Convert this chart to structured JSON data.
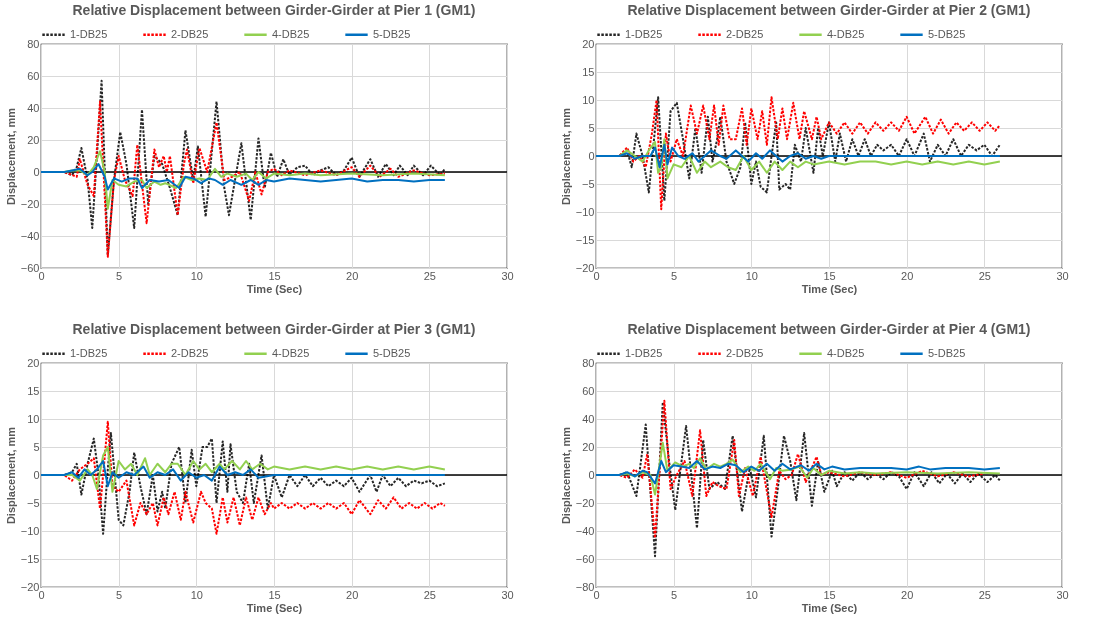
{
  "chart_data": [
    {
      "type": "line",
      "title": "Relative Displacement between Girder-Girder at Pier 1 (GM1)",
      "xlabel": "Time (Sec)",
      "ylabel": "Displacement, mm",
      "xlim": [
        0,
        30
      ],
      "xticks": [
        0,
        5,
        10,
        15,
        20,
        25,
        30
      ],
      "ylim": [
        -60,
        80
      ],
      "yticks": [
        -60,
        -40,
        -20,
        0,
        20,
        40,
        60,
        80
      ],
      "grid": true,
      "legend": "top",
      "ref_lines": [
        {
          "axis": "y",
          "value": 0,
          "color": "#000000"
        }
      ],
      "series": [
        {
          "name": "1-DB25",
          "color": "#262626",
          "line_style": "dotted",
          "x": [
            0,
            1.5,
            2,
            2.3,
            2.6,
            3,
            3.3,
            3.6,
            3.9,
            4.3,
            4.7,
            5.1,
            5.5,
            6,
            6.5,
            6.9,
            7.3,
            7.8,
            8.3,
            8.8,
            9.3,
            9.8,
            10.1,
            10.6,
            11.3,
            11.8,
            12.1,
            12.9,
            13.5,
            14,
            14.4,
            14.8,
            15.2,
            15.6,
            16,
            16.5,
            17,
            17.5,
            18,
            18.5,
            19,
            19.5,
            20,
            20.5,
            21.2,
            21.7,
            22.2,
            22.7,
            23.1,
            23.6,
            24,
            24.6,
            25.1,
            25.7,
            26
          ],
          "values": [
            0,
            0,
            -2,
            3,
            15,
            -5,
            -35,
            10,
            57,
            -52,
            -5,
            25,
            5,
            -35,
            39,
            -20,
            10,
            5,
            -10,
            -27,
            26,
            -5,
            16,
            -28,
            44,
            -10,
            -27,
            18,
            -30,
            21,
            -10,
            12,
            -3,
            8,
            -2,
            3,
            4,
            -2,
            1,
            3,
            -2,
            1,
            9,
            -3,
            8,
            -3,
            5,
            -2,
            4,
            -2,
            4,
            -2,
            4,
            -2,
            2
          ]
        },
        {
          "name": "2-DB25",
          "color": "#ff0000",
          "line_style": "dotted",
          "x": [
            0,
            1.5,
            2.3,
            2.5,
            3,
            3.4,
            3.8,
            4.3,
            4.7,
            5,
            5.4,
            5.9,
            6.2,
            6.8,
            7.3,
            7.6,
            7.9,
            8.1,
            8.3,
            8.8,
            9.2,
            9.4,
            9.8,
            10.2,
            10.7,
            11.3,
            11.8,
            12.3,
            12.8,
            13.4,
            13.8,
            14.2,
            14.6,
            15,
            15.5,
            16,
            17,
            18,
            19,
            20,
            20.5,
            21.2,
            21.8,
            22.5,
            23,
            24,
            25,
            26
          ],
          "values": [
            0,
            0,
            -3,
            8,
            -8,
            -15,
            44,
            -53,
            -5,
            10,
            -5,
            -15,
            17,
            -32,
            14,
            3,
            10,
            0,
            10,
            -27,
            5,
            14,
            -7,
            15,
            0,
            31,
            -5,
            -3,
            0,
            -18,
            0,
            -14,
            0,
            2,
            -2,
            1,
            -2,
            1,
            -2,
            3,
            -3,
            4,
            -3,
            2,
            -3,
            1,
            -2,
            -1
          ]
        },
        {
          "name": "4-DB25",
          "color": "#92d050",
          "line_style": "solid",
          "x": [
            0,
            1.5,
            2,
            2.5,
            3,
            3.4,
            3.8,
            4.1,
            4.3,
            4.6,
            5,
            5.5,
            6,
            6.5,
            6.8,
            7.3,
            7.7,
            8,
            8.7,
            9.2,
            9.7,
            10.2,
            10.7,
            11.2,
            11.6,
            12,
            12.6,
            13.2,
            13.6,
            14,
            14.5,
            15,
            16,
            17,
            18,
            20,
            22,
            24,
            26
          ],
          "values": [
            0,
            0,
            1,
            1,
            -2,
            3,
            13,
            0,
            -23,
            -5,
            -8,
            -9,
            -6,
            -5,
            -10,
            -6,
            -8,
            -7,
            -10,
            -3,
            -5,
            -4,
            -5,
            2,
            -3,
            -1,
            -3,
            -1,
            -5,
            0,
            -4,
            -1,
            -2,
            -1,
            -2,
            -1,
            -2,
            -1,
            -2
          ]
        },
        {
          "name": "5-DB25",
          "color": "#0070c0",
          "line_style": "solid",
          "x": [
            0,
            1.5,
            2,
            2.5,
            3,
            3.3,
            3.7,
            4.1,
            4.3,
            4.7,
            5.2,
            5.7,
            6.2,
            6.5,
            7,
            7.6,
            8.2,
            8.9,
            9.3,
            9.8,
            10.3,
            10.8,
            11.2,
            11.7,
            12.2,
            12.9,
            13.5,
            14,
            14.5,
            15,
            16,
            17,
            18,
            19,
            20,
            21,
            22,
            23,
            24,
            25,
            26
          ],
          "values": [
            0,
            0,
            1,
            2,
            -2,
            0,
            5,
            -3,
            -11,
            -4,
            -6,
            -4,
            -4,
            -10,
            -5,
            -6,
            -5,
            -10,
            -3,
            -4,
            -7,
            -4,
            -5,
            -8,
            -5,
            -8,
            -5,
            -8,
            -5,
            -6,
            -4,
            -5,
            -6,
            -5,
            -4,
            -6,
            -5,
            -5,
            -6,
            -5,
            -5
          ]
        }
      ]
    },
    {
      "type": "line",
      "title": "Relative Displacement between Girder-Girder at Pier 2 (GM1)",
      "xlabel": "Time (Sec)",
      "ylabel": "Displacement, mm",
      "xlim": [
        0,
        30
      ],
      "xticks": [
        0,
        5,
        10,
        15,
        20,
        25,
        30
      ],
      "ylim": [
        -20,
        20
      ],
      "yticks": [
        -20,
        -15,
        -10,
        -5,
        0,
        5,
        10,
        15,
        20
      ],
      "grid": true,
      "legend": "top",
      "ref_lines": [
        {
          "axis": "y",
          "value": 0,
          "color": "#000000"
        }
      ],
      "series": [
        {
          "name": "1-DB25",
          "color": "#262626",
          "line_style": "dotted",
          "x": [
            0,
            1.5,
            2,
            2.3,
            2.6,
            3,
            3.4,
            3.7,
            4,
            4.4,
            4.8,
            5.2,
            5.6,
            6,
            6.4,
            6.8,
            7.2,
            7.5,
            7.8,
            8,
            8.4,
            8.9,
            9.3,
            9.6,
            10,
            10.3,
            10.6,
            11,
            11.3,
            11.6,
            11.8,
            12.2,
            12.5,
            12.8,
            13.2,
            13.5,
            14,
            14.3,
            14.6,
            15,
            15.4,
            15.7,
            16.1,
            16.5,
            16.9,
            17.3,
            17.7,
            18.1,
            18.5,
            19,
            19.5,
            20,
            20.5,
            21.1,
            21.5,
            22,
            22.5,
            23,
            23.5,
            24,
            24.5,
            25,
            25.5,
            26
          ],
          "values": [
            0,
            0,
            1,
            -2,
            4,
            0,
            -6.5,
            2,
            10.5,
            -8,
            8,
            9.5,
            3,
            -4,
            5,
            -3,
            7,
            -1,
            3,
            7,
            -1,
            -5,
            -2,
            6,
            -5,
            -1,
            -5.5,
            -6.5,
            0,
            6,
            -6,
            -5,
            -6,
            2,
            -1,
            5,
            -3,
            5,
            0,
            6,
            -1,
            4,
            -1,
            3,
            0,
            3,
            0,
            2,
            1,
            2,
            0,
            3,
            0,
            4,
            -1,
            2,
            0,
            3,
            0,
            2,
            1,
            2,
            0,
            2
          ]
        },
        {
          "name": "2-DB25",
          "color": "#ff0000",
          "line_style": "dotted",
          "x": [
            0,
            1.5,
            2,
            2.4,
            2.8,
            3.2,
            3.6,
            3.9,
            4.2,
            4.5,
            4.8,
            5.2,
            5.6,
            6.1,
            6.5,
            6.9,
            7.3,
            7.6,
            7.9,
            8.2,
            8.6,
            9,
            9.4,
            9.7,
            10,
            10.4,
            10.7,
            11,
            11.3,
            11.7,
            12,
            12.3,
            12.7,
            13.1,
            13.4,
            13.9,
            14.2,
            14.5,
            15,
            15.5,
            16,
            16.5,
            17,
            17.5,
            18,
            18.5,
            19,
            19.5,
            20,
            20.5,
            21.2,
            21.7,
            22.2,
            22.7,
            23.2,
            23.7,
            24.2,
            24.7,
            25.2,
            25.7,
            26
          ],
          "values": [
            0,
            0,
            1.5,
            -1,
            0,
            -2,
            4,
            10,
            -9.5,
            4,
            -1,
            3,
            0,
            9,
            4,
            9,
            3,
            9,
            2,
            9,
            3,
            3,
            8.5,
            2,
            8.5,
            3,
            8,
            2,
            10.5,
            3,
            8.5,
            3,
            9.5,
            3,
            8,
            3,
            7,
            3,
            6,
            4,
            6,
            4,
            6,
            4,
            6,
            4.5,
            6,
            4.5,
            7,
            4,
            7,
            4,
            6.5,
            4,
            6,
            4.5,
            6,
            4.5,
            6,
            4.5,
            5.5
          ]
        },
        {
          "name": "4-DB25",
          "color": "#92d050",
          "line_style": "solid",
          "x": [
            0,
            1.5,
            2,
            2.5,
            3,
            3.4,
            3.8,
            4,
            4.2,
            4.4,
            4.6,
            5,
            5.5,
            6,
            6.5,
            7,
            7.4,
            8,
            8.5,
            9,
            9.5,
            10,
            10.5,
            11,
            11.5,
            12,
            12.5,
            13,
            13.5,
            14,
            15,
            16,
            17,
            18,
            19,
            20,
            21,
            22,
            23,
            24,
            25,
            26
          ],
          "values": [
            0,
            0,
            1,
            0,
            -1,
            1,
            2.5,
            -3,
            -2,
            3,
            -4,
            -1.5,
            -2,
            0,
            -3,
            -1,
            -2,
            -1,
            -2,
            -2.5,
            0,
            -2.5,
            -1,
            -3,
            -1,
            -2.5,
            -1,
            -2,
            -1,
            -1.5,
            -1,
            -1.5,
            -1,
            -1,
            -1.5,
            -1,
            -1.5,
            -1,
            -1.5,
            -1,
            -1.5,
            -1
          ]
        },
        {
          "name": "5-DB25",
          "color": "#0070c0",
          "line_style": "solid",
          "x": [
            0,
            1.5,
            2,
            2.5,
            3,
            3.5,
            3.8,
            4.1,
            4.4,
            4.6,
            4.9,
            5.3,
            5.7,
            6.2,
            6.6,
            7,
            7.4,
            8,
            8.4,
            9,
            9.4,
            9.8,
            10.3,
            10.7,
            11.2,
            11.6,
            12,
            12.5,
            13,
            13.5,
            14,
            14.5,
            15,
            16,
            18,
            20,
            22,
            24,
            26
          ],
          "values": [
            0,
            0,
            0.5,
            -0.5,
            0,
            0,
            1.5,
            -2,
            2,
            -1.5,
            1.5,
            0,
            -0.5,
            0.5,
            -1,
            0,
            1,
            0,
            -0.5,
            1,
            0,
            -1,
            0.5,
            -0.5,
            1,
            0,
            -1,
            0,
            0.5,
            -0.5,
            0,
            -0.5,
            0,
            0,
            0,
            0,
            0,
            0,
            0
          ]
        }
      ]
    },
    {
      "type": "line",
      "title": "Relative Displacement between Girder-Girder at Pier 3 (GM1)",
      "xlabel": "Time (Sec)",
      "ylabel": "Displacement, mm",
      "xlim": [
        0,
        30
      ],
      "xticks": [
        0,
        5,
        10,
        15,
        20,
        25,
        30
      ],
      "ylim": [
        -20,
        20
      ],
      "yticks": [
        -20,
        -15,
        -10,
        -5,
        0,
        5,
        10,
        15,
        20
      ],
      "grid": true,
      "legend": "top",
      "ref_lines": [
        {
          "axis": "y",
          "value": 0,
          "color": "#000000"
        }
      ],
      "series": [
        {
          "name": "1-DB25",
          "color": "#262626",
          "line_style": "dotted",
          "x": [
            0,
            1.5,
            2,
            2.3,
            2.6,
            3,
            3.4,
            3.7,
            4,
            4.3,
            4.5,
            5,
            5.3,
            5.7,
            6,
            6.4,
            6.8,
            7.2,
            7.5,
            7.8,
            8,
            8.4,
            8.9,
            9.3,
            9.7,
            10,
            10.4,
            10.7,
            11,
            11.3,
            11.7,
            12,
            12.2,
            12.6,
            13,
            13.4,
            13.7,
            14.2,
            14.6,
            15,
            15.5,
            16,
            16.5,
            17,
            17.5,
            18,
            18.5,
            19,
            19.5,
            20,
            20.5,
            21.2,
            21.6,
            22,
            22.5,
            23,
            23.5,
            24,
            24.5,
            25,
            25.5,
            26
          ],
          "values": [
            0,
            0,
            0.5,
            2,
            -3.5,
            2,
            6.5,
            0,
            -10.5,
            1,
            7.5,
            -8,
            -9,
            -3,
            4,
            -2,
            -7,
            0,
            -6.5,
            -3,
            -6,
            2,
            5,
            -5,
            4.5,
            -2,
            5,
            5,
            6.5,
            -5,
            6,
            -3,
            5.5,
            -3,
            -5,
            2,
            -5,
            3.5,
            -6,
            0,
            -4,
            0,
            -2,
            0,
            -2,
            -0.5,
            -2,
            -1,
            -2,
            -0.5,
            -3,
            0,
            -3,
            0,
            -2,
            -0.5,
            -2,
            -1,
            -1.5,
            -1,
            -2,
            -1.5
          ]
        },
        {
          "name": "2-DB25",
          "color": "#ff0000",
          "line_style": "dotted",
          "x": [
            0,
            1.5,
            2,
            2.5,
            3,
            3.4,
            3.8,
            4,
            4.3,
            4.6,
            5,
            5.5,
            6,
            6.4,
            6.8,
            7.2,
            7.5,
            7.9,
            8.2,
            8.6,
            9,
            9.3,
            9.8,
            10.3,
            10.6,
            11,
            11.3,
            11.7,
            12,
            12.4,
            12.8,
            13.2,
            13.6,
            14,
            14.4,
            14.8,
            15,
            15.5,
            16,
            16.5,
            17,
            17.5,
            18,
            18.5,
            19,
            19.5,
            20,
            20.5,
            21.2,
            21.7,
            22.2,
            22.7,
            23.2,
            23.7,
            24.2,
            24.7,
            25.2,
            25.7,
            26
          ],
          "values": [
            0,
            0,
            -1,
            1,
            2,
            3,
            -6,
            0,
            9.5,
            -2,
            -3,
            -1,
            -9,
            -5,
            -7,
            -5,
            -9,
            -4,
            -7,
            -3,
            -8,
            -3,
            -8.5,
            -3,
            -5,
            -6,
            -10.5,
            -4,
            -8.5,
            -4,
            -9,
            -4,
            -8,
            -4,
            -7,
            -5,
            -6,
            -5,
            -6,
            -5,
            -6,
            -5,
            -6,
            -5,
            -6,
            -5,
            -7,
            -4.5,
            -7,
            -4.5,
            -6,
            -4,
            -6,
            -5,
            -6,
            -5,
            -6,
            -5,
            -5.5
          ]
        },
        {
          "name": "4-DB25",
          "color": "#92d050",
          "line_style": "solid",
          "x": [
            0,
            1.5,
            2,
            2.5,
            3,
            3.3,
            3.6,
            4,
            4.3,
            4.6,
            5,
            5.4,
            5.8,
            6.2,
            6.7,
            7,
            7.5,
            8,
            8.4,
            8.8,
            9.3,
            9.8,
            10.2,
            10.6,
            11,
            11.5,
            11.8,
            12.3,
            12.8,
            13.2,
            13.6,
            14.1,
            14.6,
            15,
            16,
            17,
            18,
            19,
            20,
            21,
            22,
            23,
            24,
            25,
            26
          ],
          "values": [
            0,
            0,
            0,
            -1,
            1,
            0,
            -2.5,
            3.5,
            5,
            -3,
            2.5,
            1,
            2,
            0,
            3,
            0,
            2,
            0.5,
            2,
            2,
            0,
            2.5,
            1,
            2,
            0.5,
            2,
            1,
            2.5,
            1,
            2.5,
            1,
            2,
            1,
            1.5,
            1,
            1.5,
            1,
            1.5,
            1,
            1.5,
            1,
            1.5,
            1,
            1.5,
            1
          ]
        },
        {
          "name": "5-DB25",
          "color": "#0070c0",
          "line_style": "solid",
          "x": [
            0,
            1.5,
            2,
            2.4,
            2.8,
            3.2,
            3.6,
            4,
            4.3,
            4.6,
            5,
            5.5,
            6,
            6.6,
            7,
            7.5,
            8,
            8.5,
            9,
            9.5,
            10,
            10.5,
            11,
            11.5,
            12,
            12.5,
            13,
            13.5,
            14,
            15,
            16,
            18,
            20,
            22,
            24,
            26
          ],
          "values": [
            0,
            0,
            0.5,
            -0.5,
            1,
            0,
            1,
            2.5,
            -2,
            0.5,
            -0.5,
            0.5,
            0,
            1.5,
            -0.5,
            0.5,
            0,
            1,
            -1,
            0.5,
            -0.5,
            0,
            -1,
            1.5,
            0,
            0.5,
            0,
            1,
            -0.5,
            0,
            0,
            0,
            0,
            0,
            0,
            0
          ]
        }
      ]
    },
    {
      "type": "line",
      "title": "Relative Displacement between Girder-Girder at Pier 4 (GM1)",
      "xlabel": "Time (Sec)",
      "ylabel": "Displacement, mm",
      "xlim": [
        0,
        30
      ],
      "xticks": [
        0,
        5,
        10,
        15,
        20,
        25,
        30
      ],
      "ylim": [
        -80,
        80
      ],
      "yticks": [
        -80,
        -60,
        -40,
        -20,
        0,
        20,
        40,
        60,
        80
      ],
      "grid": true,
      "legend": "top",
      "ref_lines": [
        {
          "axis": "y",
          "value": 0,
          "color": "#000000"
        }
      ],
      "series": [
        {
          "name": "1-DB25",
          "color": "#262626",
          "line_style": "dotted",
          "x": [
            0,
            1.5,
            2,
            2.6,
            3.2,
            3.8,
            4.3,
            4.7,
            5.1,
            5.8,
            6.5,
            6.9,
            7.3,
            7.8,
            8.3,
            8.8,
            9.4,
            9.9,
            10.3,
            10.8,
            11.3,
            11.7,
            12.1,
            12.5,
            12.9,
            13.4,
            13.9,
            14.3,
            14.7,
            15.2,
            15.5,
            16,
            16.5,
            17,
            17.5,
            18,
            18.5,
            19,
            19.5,
            20,
            20.5,
            21.1,
            21.6,
            22.1,
            22.6,
            23.1,
            23.6,
            24.1,
            24.6,
            25.2,
            25.7,
            26
          ],
          "values": [
            0,
            0,
            2,
            -15,
            36,
            -58,
            52,
            10,
            -25,
            35,
            -38,
            25,
            -10,
            -5,
            -10,
            28,
            -26,
            5,
            -16,
            28,
            -44,
            -10,
            28,
            10,
            -18,
            30,
            -22,
            10,
            -12,
            3,
            -8,
            2,
            -4,
            2,
            -3,
            1,
            -3,
            2,
            -1,
            -10,
            2,
            -8,
            2,
            -6,
            1,
            -6,
            1,
            -5,
            1,
            -5,
            0,
            -4
          ]
        },
        {
          "name": "2-DB25",
          "color": "#ff0000",
          "line_style": "dotted",
          "x": [
            0,
            1.5,
            2,
            2.5,
            3,
            3.3,
            3.8,
            4.4,
            4.8,
            5.2,
            5.7,
            6.2,
            6.7,
            7.1,
            7.5,
            7.9,
            8.4,
            8.9,
            9.2,
            9.6,
            10.1,
            10.6,
            11.3,
            11.8,
            12.2,
            12.6,
            13,
            13.5,
            14.2,
            14.5,
            15,
            16,
            17,
            18,
            19,
            20,
            21,
            22,
            23,
            24,
            25
          ],
          "values": [
            0,
            0,
            -2,
            4,
            -2,
            15,
            -45,
            53,
            -10,
            0,
            10,
            -15,
            32,
            -15,
            -5,
            -8,
            -10,
            25,
            -15,
            5,
            -15,
            13,
            -30,
            3,
            -3,
            0,
            15,
            -5,
            13,
            0,
            2,
            -1,
            2,
            0,
            2,
            -2,
            3,
            -1,
            2,
            -1,
            1
          ]
        },
        {
          "name": "4-DB25",
          "color": "#92d050",
          "line_style": "solid",
          "x": [
            0,
            1.5,
            2,
            2.5,
            3,
            3.5,
            3.8,
            4.3,
            4.6,
            5.1,
            5.6,
            6,
            6.3,
            6.7,
            7.1,
            7.6,
            8,
            8.4,
            8.8,
            9.3,
            9.8,
            10.2,
            10.6,
            11.2,
            11.6,
            12,
            12.6,
            13.1,
            13.6,
            14,
            14.5,
            15,
            16,
            17,
            18,
            20,
            22,
            24,
            26
          ],
          "values": [
            0,
            0,
            1,
            -1,
            2,
            0,
            -14,
            23,
            3,
            9,
            6,
            8,
            5,
            12,
            4,
            8,
            6,
            8,
            11,
            2,
            6,
            3,
            8,
            -3,
            5,
            3,
            4,
            6,
            -2,
            5,
            0,
            3,
            1,
            2,
            1,
            2,
            1,
            2,
            1
          ]
        },
        {
          "name": "5-DB25",
          "color": "#0070c0",
          "line_style": "solid",
          "x": [
            0,
            1.5,
            2,
            2.5,
            3,
            3.3,
            3.8,
            4.2,
            4.5,
            5,
            5.5,
            6,
            6.5,
            7,
            7.5,
            8,
            8.5,
            9,
            9.5,
            10,
            10.5,
            11,
            11.5,
            12,
            12.5,
            13.2,
            13.7,
            14.2,
            14.7,
            15.2,
            16,
            17,
            18,
            19,
            20,
            20.8,
            21.5,
            22.5,
            24,
            25,
            26
          ],
          "values": [
            0,
            0,
            2,
            -1,
            3,
            2,
            -6,
            10,
            2,
            7,
            6,
            5,
            10,
            4,
            6,
            5,
            8,
            7,
            2,
            6,
            3,
            8,
            3,
            8,
            4,
            7,
            3,
            8,
            4,
            6,
            4,
            5,
            5,
            5,
            4,
            6,
            4,
            5,
            5,
            4,
            5
          ]
        }
      ]
    }
  ]
}
